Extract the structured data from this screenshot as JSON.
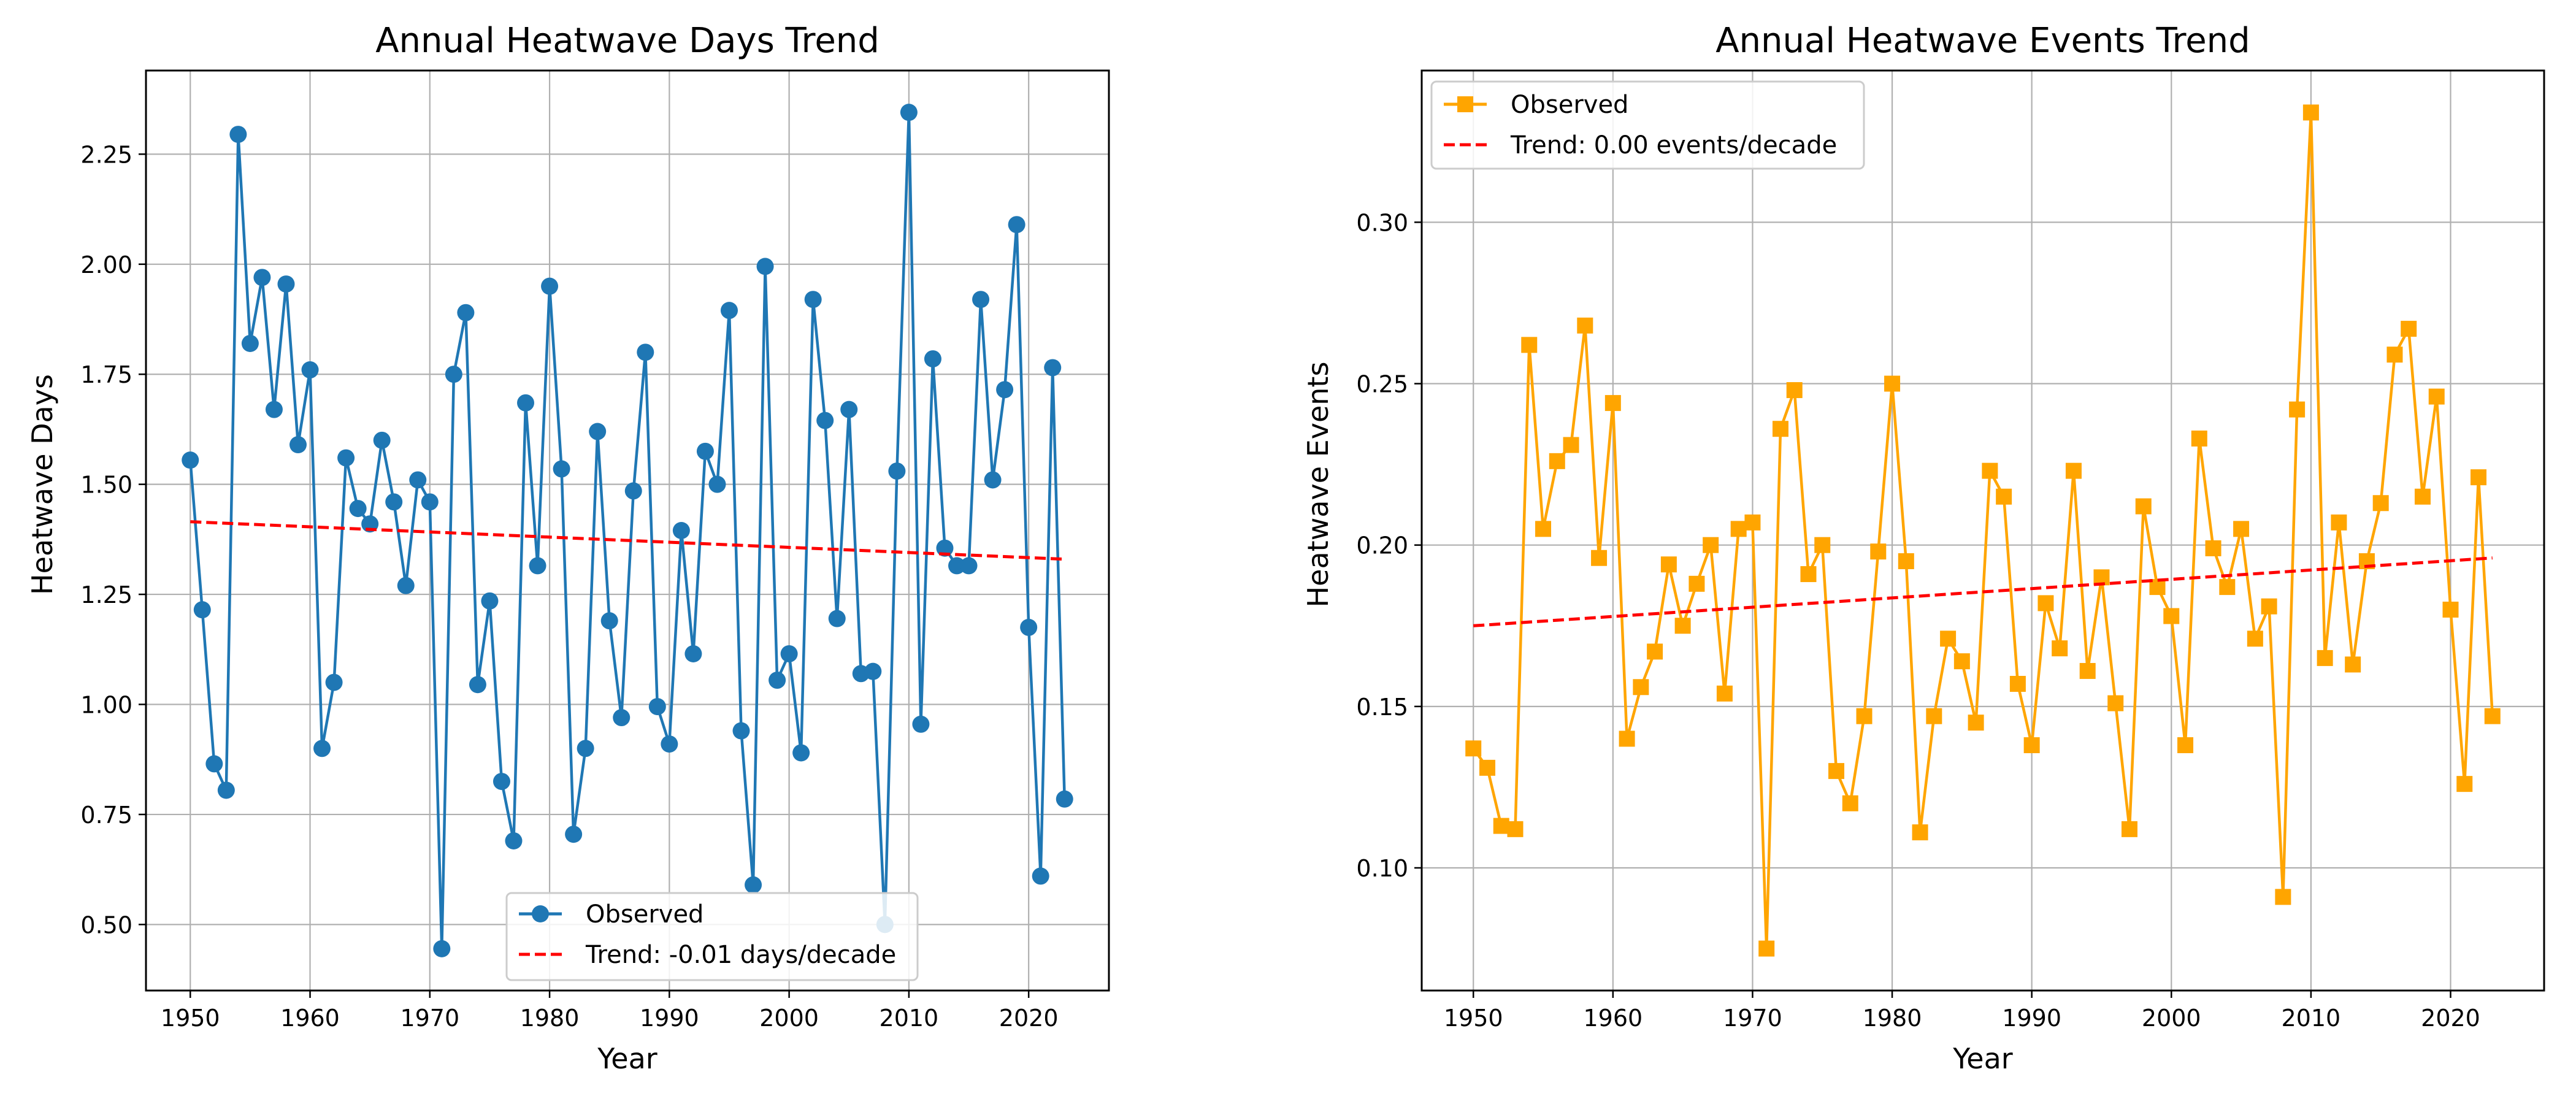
{
  "chart_data": [
    {
      "type": "line",
      "title": "Annual Heatwave Days Trend",
      "xlabel": "Year",
      "ylabel": "Heatwave Days",
      "xlim": [
        1946.3,
        2026.7
      ],
      "ylim": [
        0.35,
        2.44
      ],
      "xticks": [
        1950,
        1960,
        1970,
        1980,
        1990,
        2000,
        2010,
        2020
      ],
      "yticks": [
        0.5,
        0.75,
        1.0,
        1.25,
        1.5,
        1.75,
        2.0,
        2.25
      ],
      "ytick_labels": [
        "0.50",
        "0.75",
        "1.00",
        "1.25",
        "1.50",
        "1.75",
        "2.00",
        "2.25"
      ],
      "grid": true,
      "legend_position": "lower-center",
      "x": [
        1950,
        1951,
        1952,
        1953,
        1954,
        1955,
        1956,
        1957,
        1958,
        1959,
        1960,
        1961,
        1962,
        1963,
        1964,
        1965,
        1966,
        1967,
        1968,
        1969,
        1970,
        1971,
        1972,
        1973,
        1974,
        1975,
        1976,
        1977,
        1978,
        1979,
        1980,
        1981,
        1982,
        1983,
        1984,
        1985,
        1986,
        1987,
        1988,
        1989,
        1990,
        1991,
        1992,
        1993,
        1994,
        1995,
        1996,
        1997,
        1998,
        1999,
        2000,
        2001,
        2002,
        2003,
        2004,
        2005,
        2006,
        2007,
        2008,
        2009,
        2010,
        2011,
        2012,
        2013,
        2014,
        2015,
        2016,
        2017,
        2018,
        2019,
        2020,
        2021,
        2022,
        2023
      ],
      "series": [
        {
          "name": "Observed",
          "kind": "observed",
          "color": "#1f77b4",
          "marker": "circle",
          "values": [
            1.555,
            1.215,
            0.865,
            0.805,
            2.295,
            1.82,
            1.97,
            1.67,
            1.955,
            1.59,
            1.76,
            0.9,
            1.05,
            1.56,
            1.445,
            1.41,
            1.6,
            1.46,
            1.27,
            1.51,
            1.46,
            0.445,
            1.75,
            1.89,
            1.045,
            1.235,
            0.825,
            0.69,
            1.685,
            1.315,
            1.95,
            1.535,
            0.705,
            0.9,
            1.62,
            1.19,
            0.97,
            1.485,
            1.8,
            0.995,
            0.91,
            1.395,
            1.115,
            1.575,
            1.5,
            1.895,
            0.94,
            0.59,
            1.995,
            1.055,
            1.115,
            0.89,
            1.92,
            1.645,
            1.195,
            1.67,
            1.07,
            1.075,
            0.5,
            1.53,
            2.345,
            0.955,
            1.785,
            1.355,
            1.315,
            1.315,
            1.92,
            1.51,
            1.715,
            2.09,
            1.175,
            0.61,
            1.765,
            0.785
          ]
        },
        {
          "name": "Trend: -0.01 days/decade",
          "kind": "trend",
          "color": "#ff0000",
          "x": [
            1950,
            2023
          ],
          "values": [
            1.415,
            1.33
          ]
        }
      ]
    },
    {
      "type": "line",
      "title": "Annual Heatwave Events Trend",
      "xlabel": "Year",
      "ylabel": "Heatwave Events",
      "xlim": [
        1946.3,
        2026.7
      ],
      "ylim": [
        0.062,
        0.347
      ],
      "xticks": [
        1950,
        1960,
        1970,
        1980,
        1990,
        2000,
        2010,
        2020
      ],
      "yticks": [
        0.1,
        0.15,
        0.2,
        0.25,
        0.3
      ],
      "ytick_labels": [
        "0.10",
        "0.15",
        "0.20",
        "0.25",
        "0.30"
      ],
      "grid": true,
      "legend_position": "upper-left",
      "x": [
        1950,
        1951,
        1952,
        1953,
        1954,
        1955,
        1956,
        1957,
        1958,
        1959,
        1960,
        1961,
        1962,
        1963,
        1964,
        1965,
        1966,
        1967,
        1968,
        1969,
        1970,
        1971,
        1972,
        1973,
        1974,
        1975,
        1976,
        1977,
        1978,
        1979,
        1980,
        1981,
        1982,
        1983,
        1984,
        1985,
        1986,
        1987,
        1988,
        1989,
        1990,
        1991,
        1992,
        1993,
        1994,
        1995,
        1996,
        1997,
        1998,
        1999,
        2000,
        2001,
        2002,
        2003,
        2004,
        2005,
        2006,
        2007,
        2008,
        2009,
        2010,
        2011,
        2012,
        2013,
        2014,
        2015,
        2016,
        2017,
        2018,
        2019,
        2020,
        2021,
        2022,
        2023
      ],
      "series": [
        {
          "name": "Observed",
          "kind": "observed",
          "color": "#ffa500",
          "marker": "square",
          "values": [
            0.137,
            0.131,
            0.113,
            0.112,
            0.262,
            0.205,
            0.226,
            0.231,
            0.268,
            0.196,
            0.244,
            0.14,
            0.156,
            0.167,
            0.194,
            0.175,
            0.188,
            0.2,
            0.154,
            0.205,
            0.207,
            0.075,
            0.236,
            0.248,
            0.191,
            0.2,
            0.13,
            0.12,
            0.147,
            0.198,
            0.25,
            0.195,
            0.111,
            0.147,
            0.171,
            0.164,
            0.145,
            0.223,
            0.215,
            0.157,
            0.138,
            0.182,
            0.168,
            0.223,
            0.161,
            0.19,
            0.151,
            0.112,
            0.212,
            0.187,
            0.178,
            0.138,
            0.233,
            0.199,
            0.187,
            0.205,
            0.171,
            0.181,
            0.091,
            0.242,
            0.334,
            0.165,
            0.207,
            0.163,
            0.195,
            0.213,
            0.259,
            0.267,
            0.215,
            0.246,
            0.18,
            0.126,
            0.221,
            0.147
          ]
        },
        {
          "name": "Trend: 0.00 events/decade",
          "kind": "trend",
          "color": "#ff0000",
          "x": [
            1950,
            2023
          ],
          "values": [
            0.175,
            0.196
          ]
        }
      ]
    }
  ]
}
